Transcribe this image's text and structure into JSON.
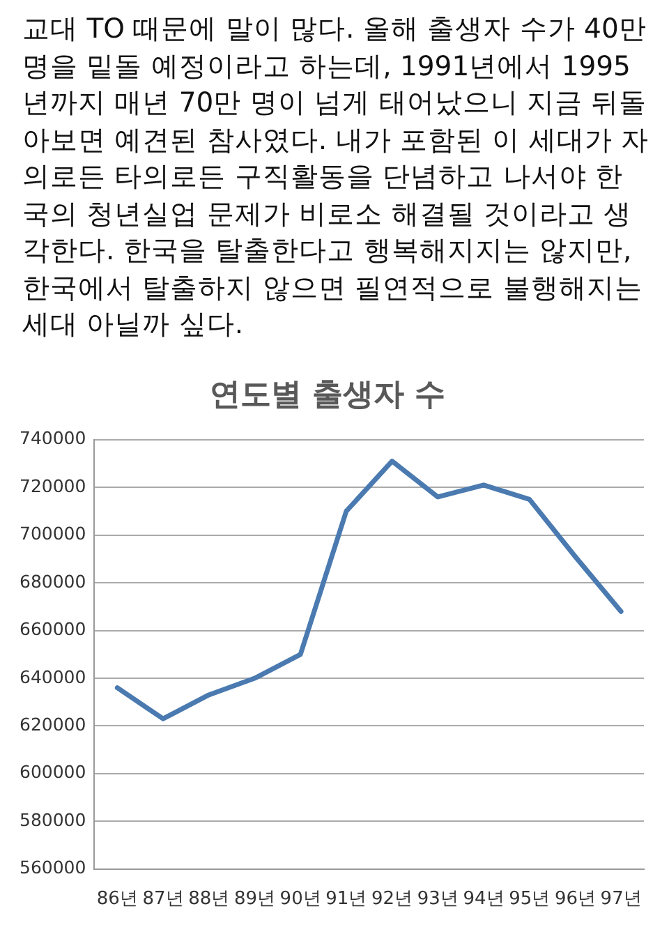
{
  "chart_data": {
    "type": "line",
    "title": "연도별 출생자 수",
    "annotations": [
      "교대 TO 때문에 말이 많다. 올해 출생자 수가 40만 명을 밑돌 예정이라고 하는데, 1991년에서 1995년까지 매년 70만 명이 넘게 태어났으니 지금 뒤돌아보면 예견된 참사였다. 내가 포함된 이 세대가 자의로든 타의로든 구직활동을 단념하고 나서야 한국의 청년실업 문제가 비로소 해결될 것이라고 생각한다. 한국을 탈출한다고 행복해지지는 않지만, 한국에서 탈출하지 않으면 필연적으로 불행해지는 세대 아닐까 싶다."
    ],
    "categories": [
      "86년",
      "87년",
      "88년",
      "89년",
      "90년",
      "91년",
      "92년",
      "93년",
      "94년",
      "95년",
      "96년",
      "97년"
    ],
    "series": [
      {
        "color": "#4a7ab0",
        "values": [
          636000,
          623000,
          633000,
          640000,
          650000,
          710000,
          731000,
          716000,
          721000,
          715000,
          691000,
          668000
        ]
      }
    ],
    "ylim": [
      560000,
      740000
    ],
    "yticks": [
      560000,
      580000,
      600000,
      620000,
      640000,
      660000,
      680000,
      700000,
      720000,
      740000
    ],
    "grid": "y",
    "legend": false,
    "marker": "none",
    "line_style": "solid"
  }
}
